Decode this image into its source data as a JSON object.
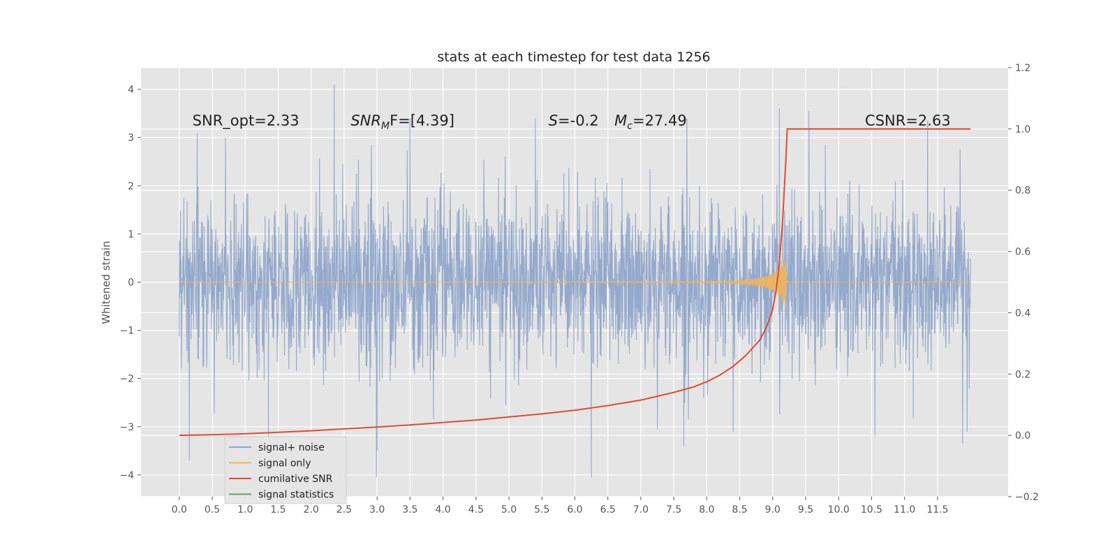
{
  "chart_data": {
    "type": "line",
    "title": "stats at each timestep for test data 1256",
    "ylabel": "Whitened strain",
    "y2label": "",
    "xlim": [
      -0.58,
      12.57
    ],
    "ylim": [
      -4.45,
      4.45
    ],
    "y2lim": [
      -0.2,
      1.2
    ],
    "x_ticks": [
      0.0,
      0.5,
      1.0,
      1.5,
      2.0,
      2.5,
      3.0,
      3.5,
      4.0,
      4.5,
      5.0,
      5.5,
      6.0,
      6.5,
      7.0,
      7.5,
      8.0,
      8.5,
      9.0,
      9.5,
      10.0,
      10.5,
      11.0,
      11.5
    ],
    "x_tick_labels": [
      "0.0",
      "0.5",
      "1.0",
      "1.5",
      "2.0",
      "2.5",
      "3.0",
      "3.5",
      "4.0",
      "4.5",
      "5.0",
      "5.5",
      "6.0",
      "6.5",
      "7.0",
      "7.5",
      "8.0",
      "8.5",
      "9.0",
      "9.5",
      "10.0",
      "10.5",
      "11.0",
      "11.5"
    ],
    "y_ticks": [
      4,
      3,
      2,
      1,
      0,
      -1,
      -2,
      -3,
      -4
    ],
    "y_tick_labels": [
      "4",
      "3",
      "2",
      "1",
      "0",
      "−1",
      "−2",
      "−3",
      "−4"
    ],
    "y2_ticks": [
      1.2,
      1.0,
      0.8,
      0.6,
      0.4,
      0.2,
      0.0,
      -0.2
    ],
    "y2_tick_labels": [
      "1.2",
      "1.0",
      "0.8",
      "0.6",
      "0.4",
      "0.2",
      "0.0",
      "−0.2"
    ],
    "grid": true,
    "legend_position": "lower-left",
    "annotations": [
      {
        "text": "SNR_opt=2.33",
        "x": 0.2,
        "y": 3.25
      },
      {
        "text": "SNR",
        "sub": "M",
        "tail": "F=[4.39]",
        "x": 2.6,
        "y": 3.25
      },
      {
        "text": "S=-0.2",
        "x": 5.6,
        "y": 3.25
      },
      {
        "text": "M",
        "sub": "c",
        "tail": "=27.49",
        "x": 6.6,
        "y": 3.25
      },
      {
        "text": "CSNR=2.63",
        "x": 10.4,
        "y": 3.25
      }
    ],
    "series": [
      {
        "name": "signal+ noise",
        "color": "#8fa5ca",
        "axis": "left",
        "x_range": [
          0.0,
          12.0
        ],
        "noise_std": 0.85,
        "peaks": [
          {
            "x": 0.15,
            "y": -3.7
          },
          {
            "x": 0.27,
            "y": 3.1
          },
          {
            "x": 0.7,
            "y": 3.0
          },
          {
            "x": 1.35,
            "y": -3.3
          },
          {
            "x": 2.35,
            "y": 4.1
          },
          {
            "x": 2.99,
            "y": -4.05
          },
          {
            "x": 3.0,
            "y": -3.5
          },
          {
            "x": 3.5,
            "y": 3.4
          },
          {
            "x": 5.4,
            "y": 3.4
          },
          {
            "x": 6.25,
            "y": -4.05
          },
          {
            "x": 7.25,
            "y": -3.05
          },
          {
            "x": 7.65,
            "y": -3.4
          },
          {
            "x": 7.7,
            "y": 3.4
          },
          {
            "x": 8.4,
            "y": -3.1
          },
          {
            "x": 9.1,
            "y": 3.6
          },
          {
            "x": 9.55,
            "y": 3.55
          },
          {
            "x": 10.55,
            "y": -3.2
          },
          {
            "x": 11.35,
            "y": 3.35
          },
          {
            "x": 11.88,
            "y": -3.35
          },
          {
            "x": 11.95,
            "y": -3.1
          }
        ]
      },
      {
        "name": "signal only",
        "color": "#f0b45a",
        "axis": "left",
        "x": [
          0.0,
          8.3,
          8.5,
          8.7,
          8.9,
          9.0,
          9.1,
          9.15,
          9.18,
          9.2,
          9.22,
          12.0
        ],
        "envelope": [
          0.0,
          0.02,
          0.04,
          0.07,
          0.12,
          0.18,
          0.3,
          0.42,
          0.55,
          0.5,
          0.0,
          0.0
        ]
      },
      {
        "name": "cumilative SNR",
        "color": "#e24a33",
        "axis": "right",
        "x": [
          0.0,
          0.5,
          1.0,
          1.5,
          2.0,
          2.5,
          3.0,
          3.5,
          4.0,
          4.5,
          5.0,
          5.5,
          6.0,
          6.5,
          7.0,
          7.5,
          7.8,
          8.0,
          8.2,
          8.4,
          8.6,
          8.8,
          8.9,
          9.0,
          9.05,
          9.1,
          9.15,
          9.2,
          9.22,
          12.0
        ],
        "y": [
          0.0,
          0.002,
          0.005,
          0.01,
          0.015,
          0.021,
          0.027,
          0.034,
          0.042,
          0.05,
          0.06,
          0.07,
          0.082,
          0.097,
          0.115,
          0.14,
          0.158,
          0.175,
          0.197,
          0.225,
          0.262,
          0.31,
          0.35,
          0.41,
          0.47,
          0.56,
          0.7,
          0.9,
          1.0,
          1.0
        ]
      },
      {
        "name": "signal statistics",
        "color": "#55a868",
        "axis": "left",
        "x": [],
        "y": []
      }
    ]
  }
}
